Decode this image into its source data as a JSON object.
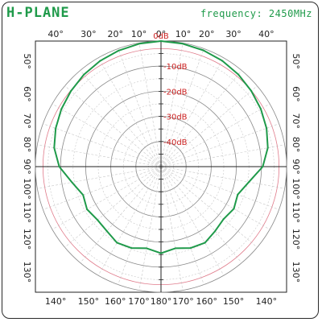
{
  "header": {
    "title": "H-PLANE",
    "frequency_label": "frequency: 2450MHz",
    "title_color": "#1f9a4a",
    "frequency_color": "#1f9a4a"
  },
  "chart_data": {
    "type": "polar-line",
    "title": "H-PLANE",
    "subtitle": "frequency: 2450MHz",
    "radial_unit": "dB",
    "radial_range": [
      -50,
      0
    ],
    "radial_ticks": [
      {
        "value": 0,
        "label": "0dB"
      },
      {
        "value": -10,
        "label": "-10dB"
      },
      {
        "value": -20,
        "label": "-20dB"
      },
      {
        "value": -30,
        "label": "-30dB"
      },
      {
        "value": -40,
        "label": "-40dB"
      }
    ],
    "reference_level_dB": -3,
    "top_ticks": [
      {
        "angle": 40,
        "label": "40°"
      },
      {
        "angle": 30,
        "label": "30°"
      },
      {
        "angle": 20,
        "label": "20°"
      },
      {
        "angle": 10,
        "label": "10°"
      },
      {
        "angle": 0,
        "label": "0°"
      },
      {
        "angle": -10,
        "label": "10°"
      },
      {
        "angle": -20,
        "label": "20°"
      },
      {
        "angle": -30,
        "label": "30°"
      },
      {
        "angle": -40,
        "label": "40°"
      }
    ],
    "bottom_ticks": [
      {
        "angle": 140,
        "label": "140°"
      },
      {
        "angle": 150,
        "label": "150°"
      },
      {
        "angle": 160,
        "label": "160°"
      },
      {
        "angle": 170,
        "label": "170°"
      },
      {
        "angle": 180,
        "label": "180°"
      },
      {
        "angle": -170,
        "label": "170°"
      },
      {
        "angle": -160,
        "label": "160°"
      },
      {
        "angle": -150,
        "label": "150°"
      },
      {
        "angle": -140,
        "label": "140°"
      }
    ],
    "left_ticks": [
      {
        "angle": 50,
        "label": "50°"
      },
      {
        "angle": 60,
        "label": "60°"
      },
      {
        "angle": 70,
        "label": "70°"
      },
      {
        "angle": 80,
        "label": "80°"
      },
      {
        "angle": 90,
        "label": "90°"
      },
      {
        "angle": 100,
        "label": "100°"
      },
      {
        "angle": 110,
        "label": "110°"
      },
      {
        "angle": 120,
        "label": "120°"
      },
      {
        "angle": 130,
        "label": "130°"
      }
    ],
    "right_ticks": [
      {
        "angle": -50,
        "label": "50°"
      },
      {
        "angle": -60,
        "label": "60°"
      },
      {
        "angle": -70,
        "label": "70°"
      },
      {
        "angle": -80,
        "label": "80°"
      },
      {
        "angle": -90,
        "label": "90°"
      },
      {
        "angle": -100,
        "label": "100°"
      },
      {
        "angle": -110,
        "label": "110°"
      },
      {
        "angle": -120,
        "label": "120°"
      },
      {
        "angle": -130,
        "label": "130°"
      }
    ],
    "series": [
      {
        "color": "#1f9a4a",
        "points": [
          {
            "angle": 0,
            "dB": 0
          },
          {
            "angle": 10,
            "dB": -0.3
          },
          {
            "angle": 20,
            "dB": -0.8
          },
          {
            "angle": 30,
            "dB": -1.4
          },
          {
            "angle": 40,
            "dB": -2.2
          },
          {
            "angle": 50,
            "dB": -3.2
          },
          {
            "angle": 60,
            "dB": -4.2
          },
          {
            "angle": 70,
            "dB": -5.4
          },
          {
            "angle": 80,
            "dB": -6.8
          },
          {
            "angle": 90,
            "dB": -9.5
          },
          {
            "angle": 100,
            "dB": -14
          },
          {
            "angle": 110,
            "dB": -17
          },
          {
            "angle": 120,
            "dB": -16
          },
          {
            "angle": 130,
            "dB": -17
          },
          {
            "angle": 140,
            "dB": -16.5
          },
          {
            "angle": 150,
            "dB": -15
          },
          {
            "angle": 160,
            "dB": -15.5
          },
          {
            "angle": 170,
            "dB": -17
          },
          {
            "angle": 180,
            "dB": -15.5
          },
          {
            "angle": -170,
            "dB": -17
          },
          {
            "angle": -160,
            "dB": -15.5
          },
          {
            "angle": -150,
            "dB": -15
          },
          {
            "angle": -140,
            "dB": -16.5
          },
          {
            "angle": -130,
            "dB": -17.5
          },
          {
            "angle": -120,
            "dB": -16.5
          },
          {
            "angle": -110,
            "dB": -17.5
          },
          {
            "angle": -100,
            "dB": -14.5
          },
          {
            "angle": -90,
            "dB": -9.5
          },
          {
            "angle": -80,
            "dB": -6.8
          },
          {
            "angle": -70,
            "dB": -5.3
          },
          {
            "angle": -60,
            "dB": -4.1
          },
          {
            "angle": -50,
            "dB": -3.1
          },
          {
            "angle": -40,
            "dB": -2.1
          },
          {
            "angle": -30,
            "dB": -1.3
          },
          {
            "angle": -20,
            "dB": -0.7
          },
          {
            "angle": -10,
            "dB": -0.3
          }
        ]
      }
    ],
    "grid": true,
    "colors": {
      "major_ring": "#8a8a8a",
      "minor_ring": "#c8c8c8",
      "reference_ring": "#e07a8a",
      "axis": "#222222",
      "radial_label": "#cc2222",
      "tick_label": "#222222"
    }
  }
}
